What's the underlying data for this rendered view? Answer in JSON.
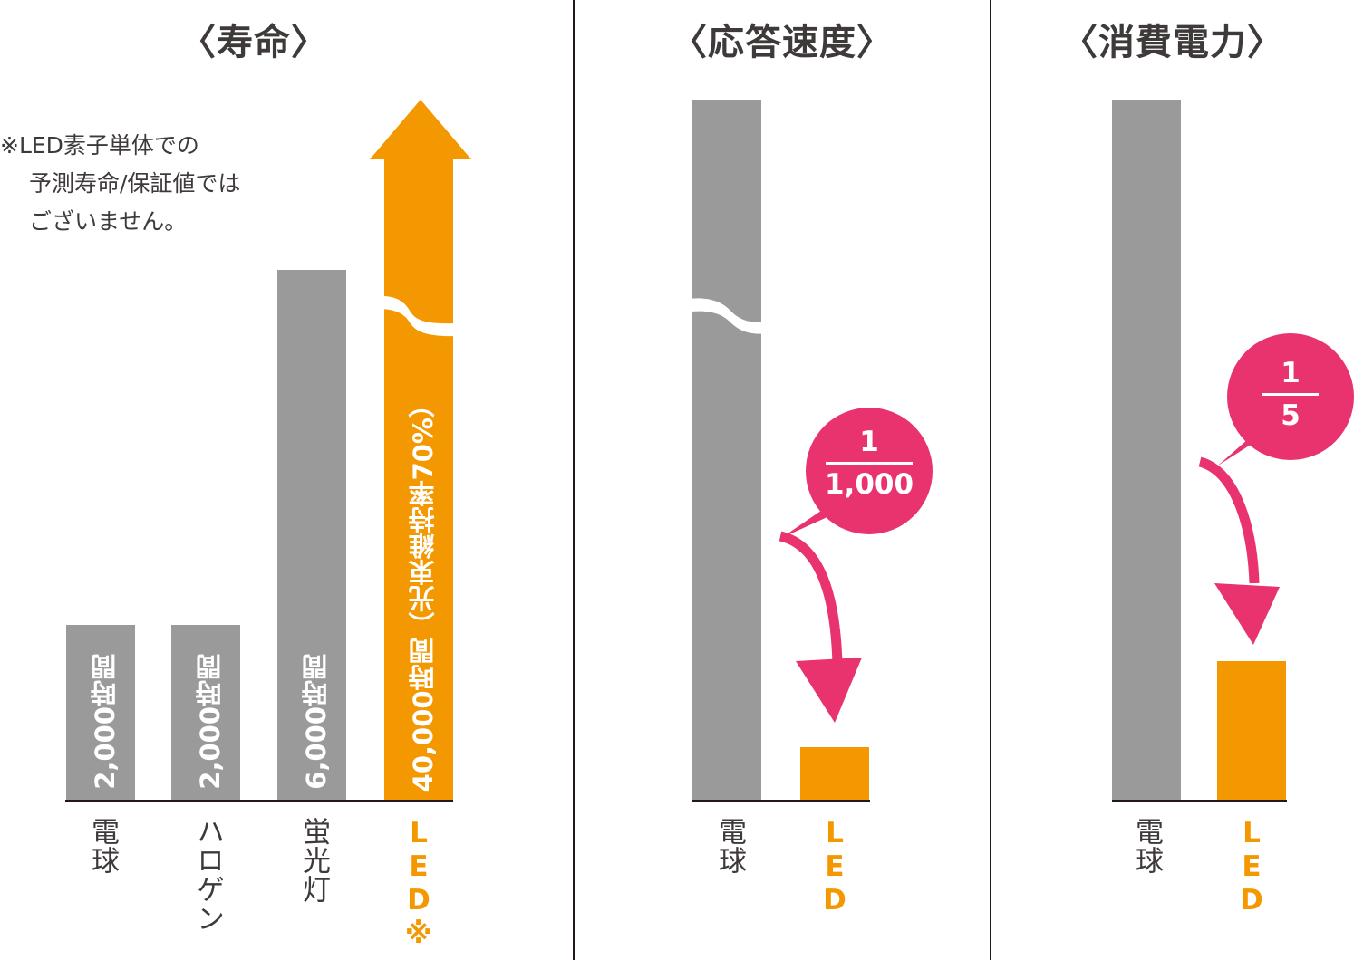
{
  "colors": {
    "gray": "#9a9a9a",
    "led": "#f39800",
    "callout": "#e8336e",
    "text": "#3e3a39"
  },
  "chart_data": [
    {
      "type": "bar",
      "title": "〈寿命〉",
      "categories": [
        "電球",
        "ハロゲン",
        "蛍光灯",
        "LED※"
      ],
      "values": [
        2000,
        2000,
        6000,
        40000
      ],
      "value_labels": [
        "2,000時間",
        "2,000時間",
        "6,000時間",
        "40,000時間（光束維持率70%）"
      ],
      "axis_break": true,
      "note": [
        "※LED素子単体での",
        "予測寿命/保証値では",
        "ございません。"
      ]
    },
    {
      "type": "bar",
      "title": "〈応答速度〉",
      "categories": [
        "電球",
        "LED"
      ],
      "values": [
        1,
        0.001
      ],
      "axis_break": true,
      "callout": {
        "numerator": "1",
        "denominator": "1,000"
      }
    },
    {
      "type": "bar",
      "title": "〈消費電力〉",
      "categories": [
        "電球",
        "LED"
      ],
      "values": [
        1,
        0.2
      ],
      "callout": {
        "numerator": "1",
        "denominator": "5"
      }
    }
  ]
}
